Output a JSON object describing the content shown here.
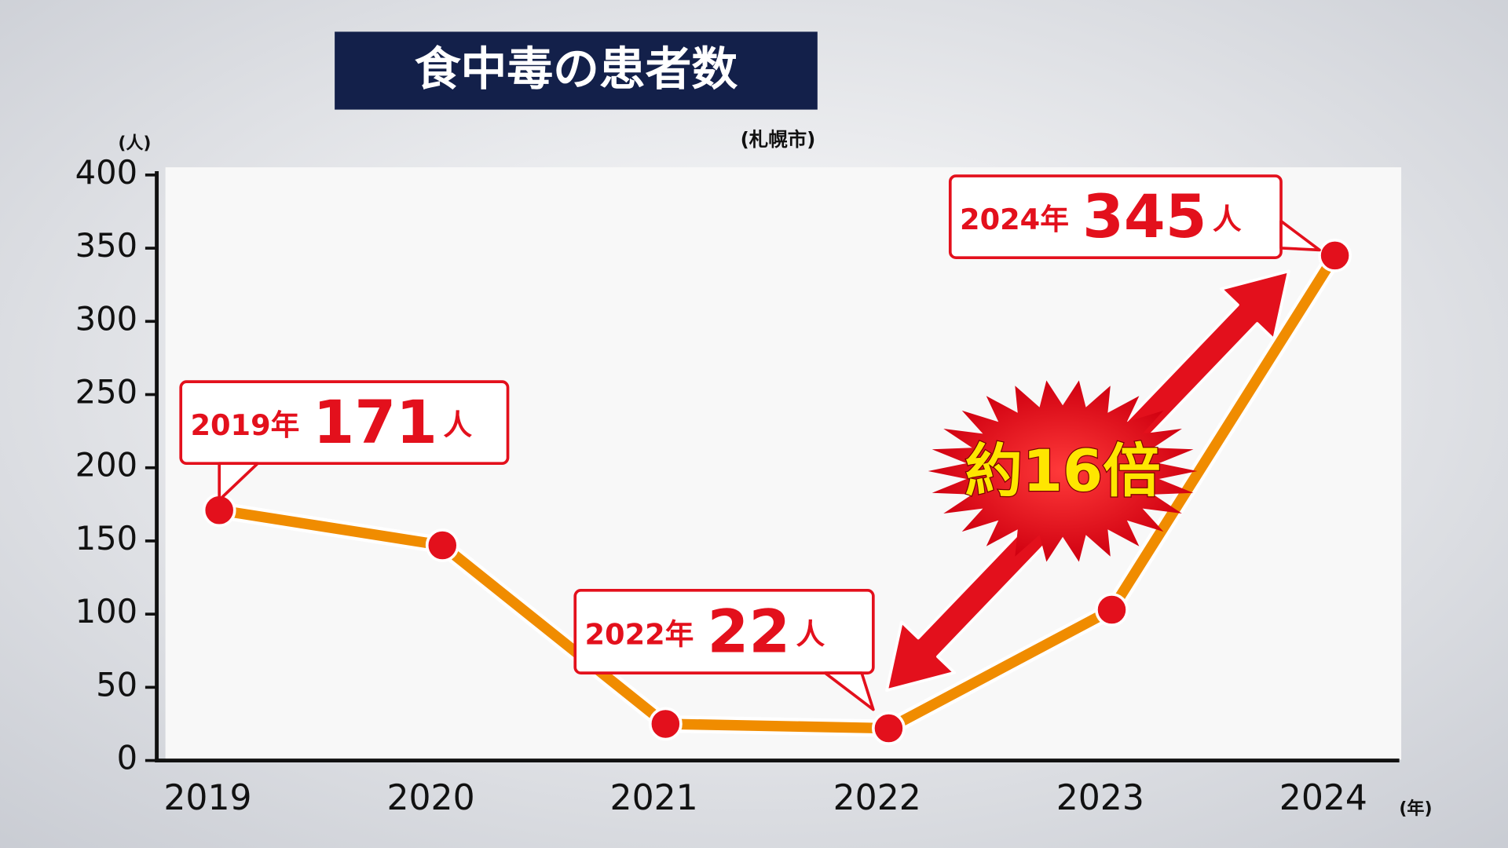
{
  "title": "食中毒の患者数",
  "source": "(札幌市)",
  "chart_data": {
    "type": "line",
    "y_label": "(人)",
    "x_label": "(年)",
    "categories": [
      "2019",
      "2020",
      "2021",
      "2022",
      "2023",
      "2024"
    ],
    "values": [
      171,
      147,
      25,
      22,
      103,
      345
    ],
    "color": "#f08c00",
    "marker_color": "#e3101c",
    "ylim": [
      0,
      400
    ],
    "yticks": [
      0,
      50,
      100,
      150,
      200,
      250,
      300,
      350,
      400
    ],
    "callouts": [
      {
        "label": "2019年",
        "unit": "人"
      },
      {
        "label": "2022年",
        "unit": "人"
      },
      {
        "label": "2024年",
        "unit": "人"
      }
    ],
    "annotation": "約16倍"
  }
}
